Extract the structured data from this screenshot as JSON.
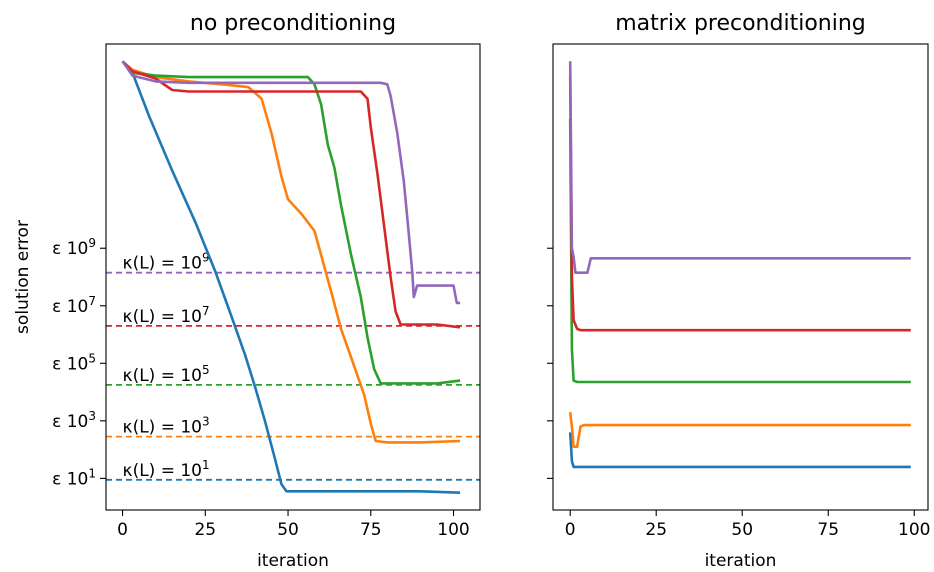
{
  "chart_data": [
    {
      "type": "line",
      "title": "no preconditioning",
      "xlabel": "iteration",
      "ylabel": "solution error",
      "yscale": "log",
      "xlim": [
        -5,
        108
      ],
      "ylim_log10": [
        -0.1,
        16.1
      ],
      "xticks": [
        0,
        25,
        50,
        75,
        100
      ],
      "yticks": [
        {
          "label": "ε 10",
          "sup": "1",
          "log10": 1
        },
        {
          "label": "ε 10",
          "sup": "3",
          "log10": 3
        },
        {
          "label": "ε 10",
          "sup": "5",
          "log10": 5
        },
        {
          "label": "ε 10",
          "sup": "7",
          "log10": 7
        },
        {
          "label": "ε 10",
          "sup": "9",
          "log10": 9
        }
      ],
      "reference_lines": [
        {
          "label": "κ(L) = 10",
          "sup": "1",
          "log10": 0.95,
          "color": "#1f77b4"
        },
        {
          "label": "κ(L) = 10",
          "sup": "3",
          "log10": 2.45,
          "color": "#ff7f0e"
        },
        {
          "label": "κ(L) = 10",
          "sup": "5",
          "log10": 4.25,
          "color": "#2ca02c"
        },
        {
          "label": "κ(L) = 10",
          "sup": "7",
          "log10": 6.3,
          "color": "#d62728"
        },
        {
          "label": "κ(L) = 10",
          "sup": "9",
          "log10": 8.15,
          "color": "#9467bd"
        }
      ],
      "series": [
        {
          "color": "#1f77b4",
          "points": [
            [
              0,
              15.5
            ],
            [
              3,
              15.1
            ],
            [
              8,
              13.6
            ],
            [
              15,
              11.7
            ],
            [
              22,
              9.9
            ],
            [
              28,
              8.2
            ],
            [
              33,
              6.6
            ],
            [
              37,
              5.3
            ],
            [
              40,
              4.2
            ],
            [
              43,
              3.0
            ],
            [
              46,
              1.7
            ],
            [
              48,
              0.8
            ],
            [
              49.5,
              0.55
            ],
            [
              60,
              0.55
            ],
            [
              75,
              0.55
            ],
            [
              90,
              0.55
            ],
            [
              102,
              0.5
            ]
          ]
        },
        {
          "color": "#ff7f0e",
          "points": [
            [
              0,
              15.5
            ],
            [
              3,
              15.2
            ],
            [
              10,
              14.95
            ],
            [
              20,
              14.8
            ],
            [
              30,
              14.7
            ],
            [
              38,
              14.6
            ],
            [
              42,
              14.2
            ],
            [
              45,
              13.0
            ],
            [
              48,
              11.5
            ],
            [
              50,
              10.7
            ],
            [
              54,
              10.2
            ],
            [
              58,
              9.6
            ],
            [
              63,
              7.5
            ],
            [
              66,
              6.2
            ],
            [
              70,
              4.9
            ],
            [
              73,
              3.9
            ],
            [
              75,
              2.9
            ],
            [
              76.5,
              2.3
            ],
            [
              80,
              2.25
            ],
            [
              90,
              2.25
            ],
            [
              102,
              2.3
            ]
          ]
        },
        {
          "color": "#2ca02c",
          "points": [
            [
              0,
              15.5
            ],
            [
              3,
              15.1
            ],
            [
              10,
              15.0
            ],
            [
              20,
              14.95
            ],
            [
              40,
              14.95
            ],
            [
              56,
              14.95
            ],
            [
              58,
              14.7
            ],
            [
              60,
              14.0
            ],
            [
              62,
              12.6
            ],
            [
              64,
              11.8
            ],
            [
              66,
              10.5
            ],
            [
              69,
              8.8
            ],
            [
              72,
              7.3
            ],
            [
              74,
              5.9
            ],
            [
              76,
              4.8
            ],
            [
              78,
              4.3
            ],
            [
              85,
              4.3
            ],
            [
              95,
              4.3
            ],
            [
              102,
              4.4
            ]
          ]
        },
        {
          "color": "#d62728",
          "points": [
            [
              0,
              15.5
            ],
            [
              3,
              15.15
            ],
            [
              10,
              14.9
            ],
            [
              15,
              14.5
            ],
            [
              20,
              14.45
            ],
            [
              40,
              14.45
            ],
            [
              60,
              14.45
            ],
            [
              72,
              14.45
            ],
            [
              74,
              14.2
            ],
            [
              75,
              13.2
            ],
            [
              77,
              11.6
            ],
            [
              79,
              9.8
            ],
            [
              81,
              8.0
            ],
            [
              82.5,
              6.8
            ],
            [
              84,
              6.35
            ],
            [
              95,
              6.35
            ],
            [
              102,
              6.25
            ]
          ]
        },
        {
          "color": "#9467bd",
          "points": [
            [
              0,
              15.5
            ],
            [
              3,
              15.0
            ],
            [
              10,
              14.8
            ],
            [
              20,
              14.75
            ],
            [
              40,
              14.75
            ],
            [
              60,
              14.75
            ],
            [
              78,
              14.75
            ],
            [
              80,
              14.7
            ],
            [
              81,
              14.3
            ],
            [
              83,
              13.0
            ],
            [
              85,
              11.3
            ],
            [
              86.5,
              9.5
            ],
            [
              87.5,
              8.2
            ],
            [
              88,
              7.3
            ],
            [
              89,
              7.7
            ],
            [
              100,
              7.7
            ],
            [
              101,
              7.1
            ],
            [
              102,
              7.1
            ]
          ]
        }
      ]
    },
    {
      "type": "line",
      "title": "matrix preconditioning",
      "xlabel": "iteration",
      "ylabel": "",
      "yscale": "log",
      "xlim": [
        -5,
        104
      ],
      "ylim_log10": [
        -0.1,
        16.1
      ],
      "xticks": [
        0,
        25,
        50,
        75,
        100
      ],
      "series": [
        {
          "color": "#1f77b4",
          "points": [
            [
              0,
              2.6
            ],
            [
              0.5,
              1.6
            ],
            [
              1,
              1.4
            ],
            [
              99,
              1.4
            ]
          ]
        },
        {
          "color": "#ff7f0e",
          "points": [
            [
              0,
              3.3
            ],
            [
              0.5,
              2.8
            ],
            [
              1,
              2.1
            ],
            [
              2,
              2.1
            ],
            [
              3,
              2.8
            ],
            [
              4,
              2.85
            ],
            [
              15,
              2.85
            ],
            [
              99,
              2.85
            ]
          ]
        },
        {
          "color": "#2ca02c",
          "points": [
            [
              0,
              13.5
            ],
            [
              0.5,
              5.5
            ],
            [
              1,
              4.4
            ],
            [
              2,
              4.35
            ],
            [
              99,
              4.35
            ]
          ]
        },
        {
          "color": "#d62728",
          "points": [
            [
              0,
              15.0
            ],
            [
              0.5,
              8.0
            ],
            [
              1,
              6.5
            ],
            [
              2,
              6.2
            ],
            [
              3,
              6.15
            ],
            [
              99,
              6.15
            ]
          ]
        },
        {
          "color": "#9467bd",
          "points": [
            [
              0,
              15.5
            ],
            [
              0.5,
              9.0
            ],
            [
              1,
              8.7
            ],
            [
              1.5,
              8.15
            ],
            [
              5,
              8.15
            ],
            [
              6,
              8.65
            ],
            [
              7,
              8.65
            ],
            [
              99,
              8.65
            ]
          ]
        }
      ]
    }
  ]
}
